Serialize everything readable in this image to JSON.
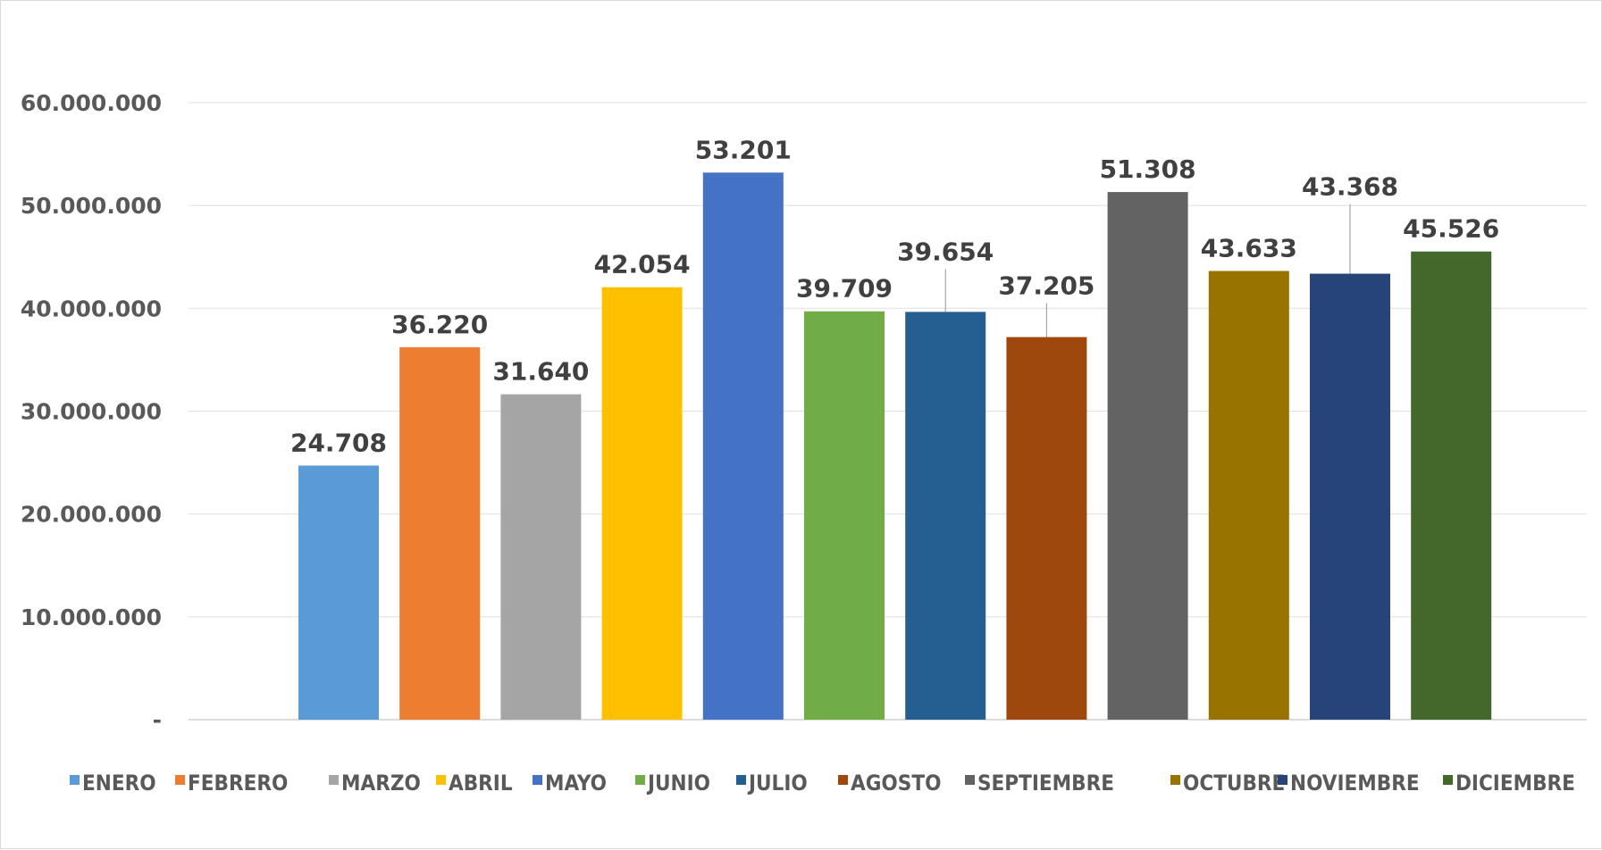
{
  "chart_data": {
    "type": "bar",
    "title": "",
    "xlabel": "",
    "ylabel": "",
    "ylim": [
      0,
      60000000
    ],
    "yticks": [
      0,
      10000000,
      20000000,
      30000000,
      40000000,
      50000000,
      60000000
    ],
    "ytick_labels": [
      "-",
      "10.000.000",
      "20.000.000",
      "30.000.000",
      "40.000.000",
      "50.000.000",
      "60.000.000"
    ],
    "grid": true,
    "legend_position": "bottom",
    "categories": [
      "ENERO",
      "FEBRERO",
      "MARZO",
      "ABRIL",
      "MAYO",
      "JUNIO",
      "JULIO",
      "AGOSTO",
      "SEPTIEMBRE",
      "OCTUBRE",
      "NOVIEMBRE",
      "DICIEMBRE"
    ],
    "values": [
      24708000,
      36220000,
      31640000,
      42054000,
      53201000,
      39709000,
      39654000,
      37205000,
      51308000,
      43633000,
      43368000,
      45526000
    ],
    "data_labels": [
      "24.708",
      "36.220",
      "31.640",
      "42.054",
      "53.201",
      "39.709",
      "39.654",
      "37.205",
      "51.308",
      "43.633",
      "43.368",
      "45.526"
    ],
    "colors": [
      "#5b9bd5",
      "#ed7d31",
      "#a5a5a5",
      "#ffc000",
      "#4472c4",
      "#70ad47",
      "#255e91",
      "#9e480e",
      "#636363",
      "#997300",
      "#264478",
      "#43682b"
    ]
  }
}
